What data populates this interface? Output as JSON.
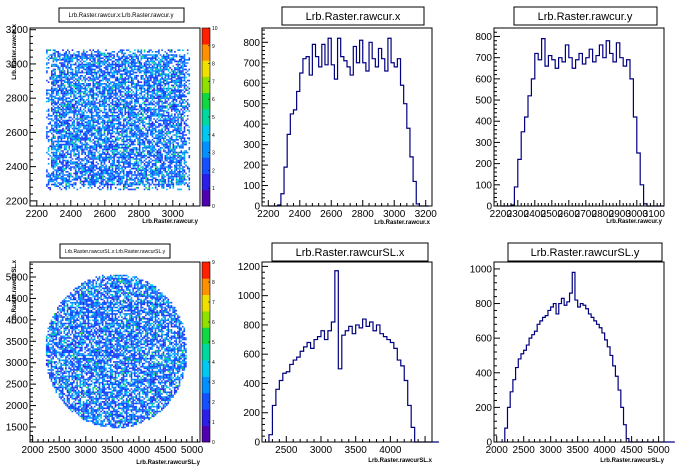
{
  "canvas": {
    "background": "#ffffff",
    "frame_color": "#000000",
    "histo_color": "#000080"
  },
  "chart_data": [
    {
      "id": "p1",
      "type": "heatmap",
      "title": "Lrb.Raster.rawcur.x:Lrb.Raster.rawcur.y",
      "xlabel": "Lrb.Raster.rawcur.y",
      "ylabel": "Lrb.Raster.rawcur.x",
      "xlim": [
        2160,
        3160
      ],
      "ylim": [
        2170,
        3210
      ],
      "xticks": [
        2200,
        2400,
        2600,
        2800,
        3000
      ],
      "yticks": [
        2200,
        2400,
        2600,
        2800,
        3000,
        3200
      ],
      "yticklabels": [
        "2200",
        "2400",
        "2600",
        "2800",
        "3000",
        "3200"
      ],
      "shape": "rect",
      "fill_x": [
        2255,
        3095
      ],
      "fill_y": [
        2270,
        3085
      ],
      "zlim": [
        0,
        10
      ],
      "palette_ticks": [
        0,
        1,
        2,
        3,
        4,
        5,
        6,
        7,
        8,
        9,
        10
      ]
    },
    {
      "id": "p2",
      "type": "bar",
      "title": "Lrb.Raster.rawcur.x",
      "xlabel": "Lrb.Raster.rawcur.x",
      "xlim": [
        2160,
        3240
      ],
      "ylim": [
        0,
        870
      ],
      "xticks": [
        2200,
        2400,
        2600,
        2800,
        3000,
        3200
      ],
      "yticks": [
        0,
        100,
        200,
        300,
        400,
        500,
        600,
        700,
        800
      ],
      "bins": {
        "start": 2200,
        "width": 20,
        "values": [
          0,
          0,
          0,
          5,
          60,
          190,
          350,
          450,
          470,
          560,
          650,
          720,
          730,
          640,
          790,
          730,
          680,
          790,
          690,
          820,
          690,
          620,
          820,
          730,
          710,
          680,
          640,
          780,
          700,
          810,
          700,
          660,
          800,
          720,
          680,
          770,
          720,
          660,
          820,
          700,
          680,
          720,
          590,
          500,
          380,
          240,
          120,
          10,
          0,
          0,
          0
        ]
      }
    },
    {
      "id": "p3",
      "type": "bar",
      "title": "Lrb.Raster.rawcur.y",
      "xlabel": "Lrb.Raster.rawcur.y",
      "xlim": [
        2160,
        3160
      ],
      "ylim": [
        0,
        840
      ],
      "xticks": [
        2200,
        2300,
        2400,
        2500,
        2600,
        2700,
        2800,
        2900,
        3000,
        3100
      ],
      "yticks": [
        0,
        100,
        200,
        300,
        400,
        500,
        600,
        700,
        800
      ],
      "bins": {
        "start": 2200,
        "width": 20,
        "values": [
          0,
          0,
          0,
          5,
          90,
          220,
          350,
          420,
          520,
          600,
          720,
          690,
          790,
          660,
          710,
          690,
          650,
          700,
          680,
          760,
          700,
          650,
          690,
          720,
          670,
          700,
          740,
          680,
          710,
          760,
          700,
          780,
          720,
          680,
          770,
          700,
          660,
          690,
          600,
          420,
          250,
          100,
          10,
          0,
          0,
          0,
          0,
          0
        ]
      }
    },
    {
      "id": "p4",
      "type": "heatmap",
      "title": "Lrb.Raster.rawcurSL.x:Lrb.Raster.rawcurSL.y",
      "xlabel": "Lrb.Raster.rawcurSL.y",
      "ylabel": "Lrb.Raster.rawcurSL.x",
      "xlim": [
        1950,
        5150
      ],
      "ylim": [
        1150,
        5350
      ],
      "xticks": [
        2000,
        2500,
        3000,
        3500,
        4000,
        4500,
        5000
      ],
      "yticks": [
        1500,
        2000,
        2500,
        3000,
        3500,
        4000,
        4500,
        5000
      ],
      "yticklabels": [
        "1500",
        "2000",
        "2500",
        "3000",
        "3500",
        "4000",
        "4500",
        "5000"
      ],
      "shape": "ellipse",
      "center": [
        3560,
        3290
      ],
      "radius": [
        1340,
        1800
      ],
      "zlim": [
        0,
        9
      ],
      "palette_ticks": [
        0,
        1,
        2,
        3,
        4,
        5,
        6,
        7,
        8,
        9
      ]
    },
    {
      "id": "p5",
      "type": "bar",
      "title": "Lrb.Raster.rawcurSL.x",
      "xlabel": "Lrb.Raster.rawcurSL.x",
      "xlim": [
        2150,
        4600
      ],
      "ylim": [
        0,
        1230
      ],
      "xticks": [
        2500,
        3000,
        3500,
        4000
      ],
      "yticks": [
        0,
        200,
        400,
        600,
        800,
        1000,
        1200
      ],
      "bins": {
        "start": 2250,
        "width": 50,
        "values": [
          50,
          250,
          360,
          420,
          470,
          480,
          530,
          560,
          580,
          620,
          650,
          680,
          640,
          700,
          720,
          760,
          700,
          760,
          820,
          1170,
          500,
          730,
          760,
          790,
          740,
          800,
          780,
          840,
          790,
          820,
          760,
          800,
          740,
          720,
          700,
          680,
          640,
          560,
          520,
          420,
          250,
          100,
          0,
          0,
          0,
          0,
          0,
          0,
          0
        ]
      }
    },
    {
      "id": "p6",
      "type": "bar",
      "title": "Lrb.Raster.rawcurSL.y",
      "xlabel": "Lrb.Raster.rawcurSL.y",
      "xlim": [
        1950,
        5100
      ],
      "ylim": [
        0,
        1040
      ],
      "xticks": [
        2000,
        2500,
        3000,
        3500,
        4000,
        4500,
        5000
      ],
      "yticks": [
        0,
        200,
        400,
        600,
        800,
        1000
      ],
      "bins": {
        "start": 2150,
        "width": 50,
        "values": [
          80,
          200,
          290,
          360,
          430,
          480,
          510,
          530,
          560,
          600,
          620,
          640,
          680,
          700,
          720,
          730,
          760,
          780,
          800,
          740,
          800,
          830,
          790,
          810,
          860,
          980,
          820,
          780,
          800,
          790,
          770,
          740,
          720,
          700,
          680,
          660,
          630,
          590,
          550,
          500,
          440,
          380,
          300,
          200,
          100,
          20,
          0,
          0,
          0,
          0,
          0,
          0,
          0,
          0,
          0,
          0,
          0,
          0,
          0,
          0,
          0,
          0,
          0
        ]
      }
    }
  ]
}
